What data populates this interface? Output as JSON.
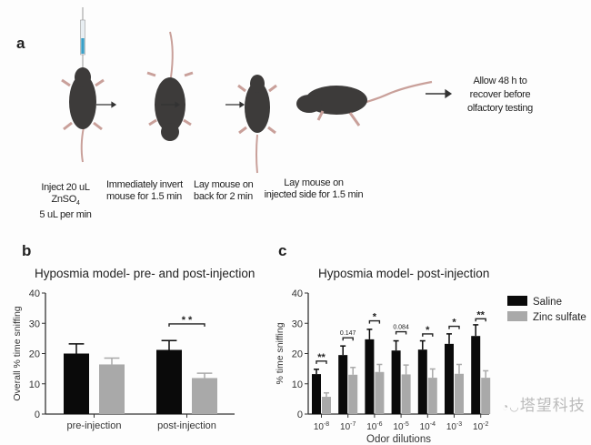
{
  "panel_a": {
    "letter": "a",
    "steps": [
      {
        "line1": "Inject 20 uL",
        "line2": "ZnSO",
        "sub": "4",
        "line3": "5 uL per min"
      },
      {
        "line1": "Immediately invert",
        "line2": "mouse for 1.5 min"
      },
      {
        "line1": "Lay mouse on",
        "line2": "back for 2 min"
      },
      {
        "line1": "Lay mouse on",
        "line2": "injected side for 1.5 min"
      },
      {
        "line1": "Allow 48 h to",
        "line2": "recover before",
        "line3": "olfactory testing"
      }
    ]
  },
  "watermark": "塔望科技",
  "colors": {
    "saline": "#0a0a0a",
    "zinc": "#a9a9a9",
    "mouse": "#3d3b3a",
    "tail": "#c9a09a"
  },
  "chart_data": [
    {
      "panel": "b",
      "type": "bar",
      "title": "Hyposmia model- pre- and post-injection",
      "ylabel": "Overall % time sniffing",
      "xlabel": "",
      "ylim": [
        0,
        40
      ],
      "yticks": [
        "0",
        "10",
        "20",
        "30",
        "40"
      ],
      "categories": [
        "pre-injection",
        "post-injection"
      ],
      "series": [
        {
          "name": "Saline",
          "values": [
            20.0,
            21.2
          ],
          "errors": [
            3.2,
            3.1
          ]
        },
        {
          "name": "Zinc sulfate",
          "values": [
            16.4,
            11.9
          ],
          "errors": [
            2.1,
            1.6
          ]
        }
      ],
      "annotations": [
        {
          "category": 1,
          "text": "* *",
          "level": 29.8
        }
      ]
    },
    {
      "panel": "c",
      "type": "bar",
      "title": "Hyposmia model- post-injection",
      "ylabel": "% time sniffing",
      "xlabel": "Odor dilutions",
      "ylim": [
        0,
        40
      ],
      "yticks": [
        "0",
        "10",
        "20",
        "30",
        "40"
      ],
      "categories": [
        "-8",
        "-7",
        "-6",
        "-5",
        "-4",
        "-3",
        "-2"
      ],
      "category_base": "10",
      "legend": {
        "position": "top-right",
        "entries": [
          "Saline",
          "Zinc sulfate"
        ]
      },
      "series": [
        {
          "name": "Saline",
          "values": [
            13.2,
            19.5,
            24.7,
            21.0,
            21.3,
            23.2,
            25.8
          ],
          "errors": [
            1.6,
            3.0,
            3.3,
            3.2,
            2.9,
            3.3,
            3.7
          ]
        },
        {
          "name": "Zinc sulfate",
          "values": [
            5.7,
            13.0,
            13.9,
            13.1,
            12.0,
            13.3,
            12.0
          ],
          "errors": [
            1.3,
            2.4,
            2.5,
            3.1,
            2.9,
            3.1,
            2.3
          ]
        }
      ],
      "annotations": [
        {
          "category": 0,
          "text": "**",
          "level": 17.5
        },
        {
          "category": 1,
          "text": "0.147",
          "level": 25.2
        },
        {
          "category": 2,
          "text": "*",
          "level": 30.8
        },
        {
          "category": 3,
          "text": "0.084",
          "level": 27.2
        },
        {
          "category": 4,
          "text": "*",
          "level": 26.5
        },
        {
          "category": 5,
          "text": "*",
          "level": 29.0
        },
        {
          "category": 6,
          "text": "**",
          "level": 31.5
        }
      ]
    }
  ]
}
